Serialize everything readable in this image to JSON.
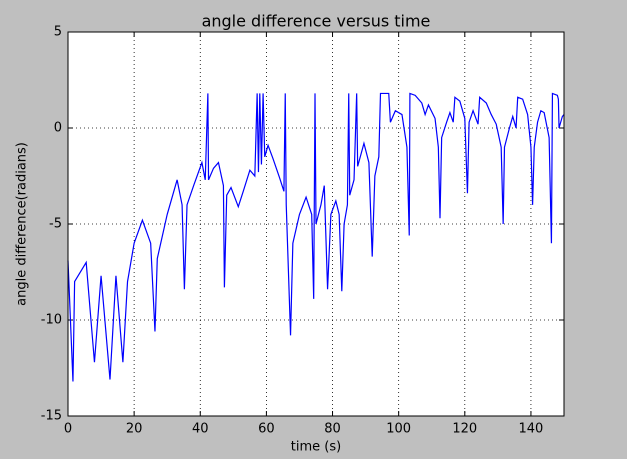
{
  "chart_data": {
    "type": "line",
    "title": "angle difference versus time",
    "xlabel": "time (s)",
    "ylabel": "angle difference(radians)",
    "x": [
      0,
      1.5,
      2,
      5.5,
      8,
      10,
      12.7,
      14.5,
      16.6,
      18,
      20,
      22.5,
      25,
      26.3,
      27,
      30,
      33,
      34.5,
      35.2,
      36,
      38,
      40.5,
      41.5,
      42.3,
      42.5,
      44,
      45.5,
      47,
      47.3,
      48,
      49.3,
      51.5,
      53,
      55,
      56.5,
      57.2,
      57.6,
      58,
      58.5,
      59,
      59.5,
      60.5,
      62,
      64,
      65.3,
      65.7,
      66,
      67.3,
      68,
      70,
      72,
      73.7,
      74.3,
      74.7,
      75,
      76.5,
      77.5,
      78.5,
      79.5,
      81,
      82,
      82.8,
      83.5,
      84.5,
      84.9,
      85.2,
      86.5,
      87.3,
      87.6,
      89.5,
      91,
      92,
      92.8,
      94,
      94.5,
      97,
      97.5,
      99,
      101,
      102.5,
      103.2,
      103.4,
      105,
      107,
      108,
      109,
      111,
      112,
      112.5,
      113,
      114.5,
      115.5,
      116.5,
      117,
      118.5,
      120,
      120.8,
      121.3,
      122.5,
      124,
      124.5,
      126.5,
      128,
      129.5,
      131,
      131.6,
      132,
      133.5,
      134.5,
      135.5,
      136,
      137.5,
      139,
      140,
      140.5,
      141,
      142,
      143,
      144,
      145.5,
      146.2,
      146.5,
      148,
      148.3,
      148.5,
      149.5,
      150
    ],
    "series": [
      {
        "name": "angle difference",
        "color": "#0000ff",
        "values": [
          -6.9,
          -13.2,
          -8,
          -7,
          -12.2,
          -7.7,
          -13.1,
          -7.7,
          -12.2,
          -8,
          -6,
          -4.8,
          -6,
          -10.6,
          -6.8,
          -4.5,
          -2.7,
          -4,
          -8.4,
          -4,
          -3,
          -1.8,
          -2.7,
          1.8,
          -2.7,
          -2.1,
          -1.8,
          -3,
          -8.3,
          -3.5,
          -3.1,
          -4.1,
          -3.3,
          -2.2,
          -2.5,
          1.8,
          -2.3,
          1.8,
          -1.9,
          1.8,
          -1.5,
          -0.9,
          -1.6,
          -2.6,
          -3.3,
          1.8,
          -4,
          -10.8,
          -6,
          -4.5,
          -3.6,
          -4.5,
          -8.9,
          1.8,
          -5,
          -4,
          -3,
          -8.4,
          -4.5,
          -3.8,
          -4.5,
          -8.5,
          -5,
          -4,
          1.8,
          -3.5,
          -2.7,
          1.8,
          -2,
          -0.8,
          -1.8,
          -6.7,
          -2.5,
          -1.5,
          1.8,
          1.8,
          0.3,
          0.9,
          0.7,
          -1,
          -5.6,
          1.8,
          1.7,
          1.3,
          0.7,
          1.2,
          0.5,
          -1,
          -4.7,
          -0.5,
          0.3,
          0.8,
          0.3,
          1.6,
          1.4,
          0.5,
          -3.4,
          0.3,
          0.9,
          0.2,
          1.6,
          1.3,
          0.7,
          0.2,
          -1,
          -5,
          -1,
          0,
          0.6,
          0,
          1.6,
          1.5,
          0.7,
          -1,
          -4,
          -1,
          0.3,
          0.9,
          0.8,
          -0.5,
          -6,
          1.8,
          1.7,
          1.5,
          0,
          0.6,
          0.7
        ]
      }
    ],
    "xlim": [
      0,
      150
    ],
    "ylim": [
      -15,
      5
    ],
    "xticks": [
      0,
      20,
      40,
      60,
      80,
      100,
      120,
      140
    ],
    "yticks": [
      -15,
      -10,
      -5,
      0,
      5
    ],
    "grid": true
  }
}
